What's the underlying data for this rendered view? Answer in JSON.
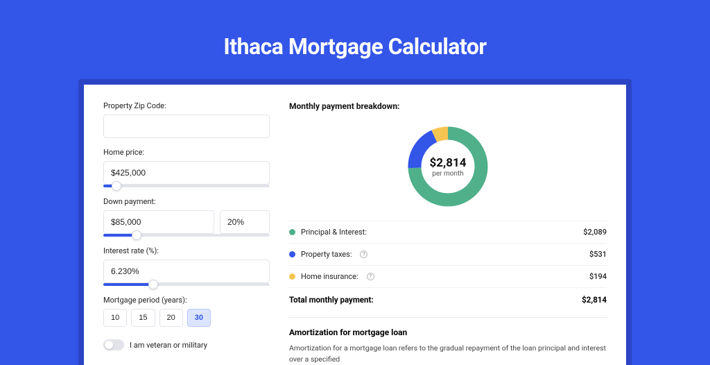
{
  "page": {
    "title": "Ithaca Mortgage Calculator",
    "background_color": "#3355e8",
    "shadow_color": "#2a44c4",
    "card_color": "#ffffff"
  },
  "form": {
    "zip": {
      "label": "Property Zip Code:",
      "value": ""
    },
    "home_price": {
      "label": "Home price:",
      "value": "$425,000",
      "slider_pct": 8
    },
    "down_payment": {
      "label": "Down payment:",
      "value": "$85,000",
      "pct_value": "20%",
      "slider_pct": 20
    },
    "interest": {
      "label": "Interest rate (%):",
      "value": "6.230%",
      "slider_pct": 30
    },
    "period": {
      "label": "Mortgage period (years):",
      "options": [
        "10",
        "15",
        "20",
        "30"
      ],
      "selected": "30"
    },
    "veteran": {
      "label": "I am veteran or military",
      "checked": false
    }
  },
  "breakdown": {
    "title": "Monthly payment breakdown:",
    "donut": {
      "center_value": "$2,814",
      "center_sub": "per month",
      "segments": [
        {
          "name": "principal_interest",
          "color": "#4fb08a",
          "value": 2089
        },
        {
          "name": "property_taxes",
          "color": "#3355e8",
          "value": 531
        },
        {
          "name": "home_insurance",
          "color": "#f5c451",
          "value": 194
        }
      ],
      "total": 2814,
      "stroke_width": 19,
      "radius": 48
    },
    "legend": [
      {
        "label": "Principal & Interest:",
        "color": "#4fb08a",
        "value": "$2,089",
        "info": false
      },
      {
        "label": "Property taxes:",
        "color": "#3355e8",
        "value": "$531",
        "info": true
      },
      {
        "label": "Home insurance:",
        "color": "#f5c451",
        "value": "$194",
        "info": true
      }
    ],
    "total_row": {
      "label": "Total monthly payment:",
      "value": "$2,814"
    }
  },
  "amort": {
    "title": "Amortization for mortgage loan",
    "text": "Amortization for a mortgage loan refers to the gradual repayment of the loan principal and interest over a specified"
  }
}
